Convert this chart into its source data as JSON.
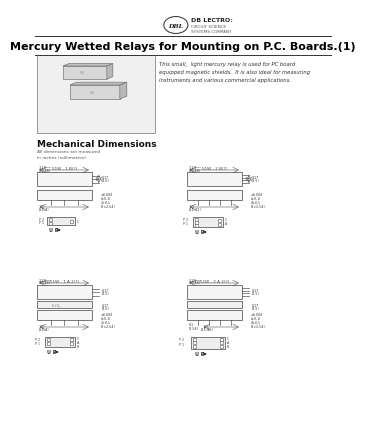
{
  "title": "Mercury Wetted Relays for Mounting on P.C. Boards.(1)",
  "company_name": "DB LECTRO:",
  "company_sub1": "CIRCUIT SCIENCE",
  "company_sub2": "SYSTEMS COMPANY",
  "description1": "This small,  light mercury relay is used for PC board",
  "description2": "equipped magnetic shields.  It is also ideal for measuring",
  "description3": "instruments and various commercial applications.",
  "mech_title": "Mechanical Dimensions",
  "mech_sub1": "All dimensions are measured",
  "mech_sub2": "in inches (millimeters).",
  "bg_color": "#ffffff",
  "text_color": "#000000",
  "line_color": "#555555",
  "dim_color": "#444444",
  "section_titles": [
    "51W - 1 A 2(?)",
    "51W - 2 A 2(?)",
    "51W - 1 B(?)",
    "51W - 2 B(?)"
  ]
}
